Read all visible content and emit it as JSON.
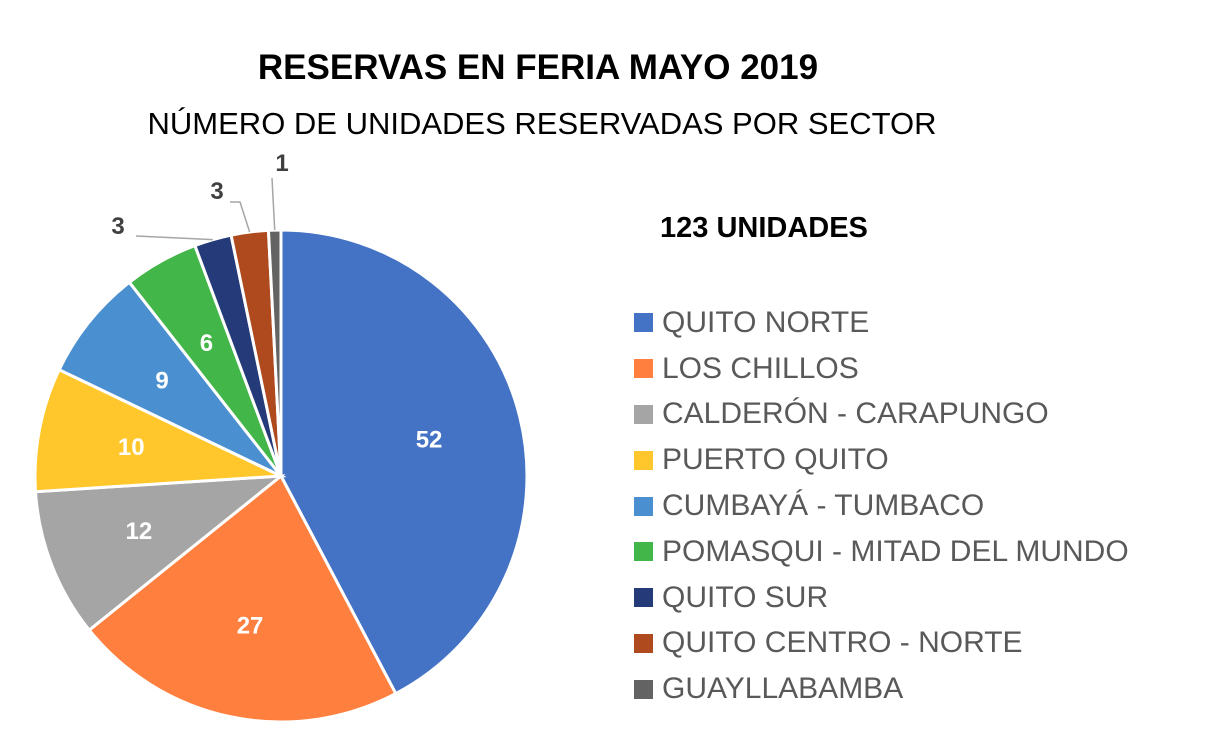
{
  "chart_data": {
    "type": "pie",
    "title": "RESERVAS EN FERIA MAYO 2019",
    "subtitle": "NÚMERO DE UNIDADES RESERVADAS POR SECTOR",
    "annotation": "123 UNIDADES",
    "legend_position": "right",
    "start_angle": "top, clockwise",
    "slices": [
      {
        "label": "QUITO NORTE",
        "value": 52,
        "color": "#4472C4",
        "label_color": "#ffffff"
      },
      {
        "label": "LOS CHILLOS",
        "value": 27,
        "color": "#FF7F3F",
        "label_color": "#ffffff"
      },
      {
        "label": "CALDERÓN - CARAPUNGO",
        "value": 12,
        "color": "#A5A5A5",
        "label_color": "#ffffff"
      },
      {
        "label": "PUERTO QUITO",
        "value": 10,
        "color": "#FFC72C",
        "label_color": "#ffffff"
      },
      {
        "label": "CUMBAYÁ - TUMBACO",
        "value": 9,
        "color": "#4A90D0",
        "label_color": "#ffffff"
      },
      {
        "label": "POMASQUI - MITAD DEL MUNDO",
        "value": 6,
        "color": "#43B649",
        "label_color": "#ffffff"
      },
      {
        "label": "QUITO SUR",
        "value": 3,
        "color": "#253A78",
        "label_color": "#404040"
      },
      {
        "label": "QUITO CENTRO - NORTE",
        "value": 3,
        "color": "#AE4A1E",
        "label_color": "#404040"
      },
      {
        "label": "GUAYLLABAMBA",
        "value": 1,
        "color": "#636363",
        "label_color": "#404040"
      }
    ]
  }
}
